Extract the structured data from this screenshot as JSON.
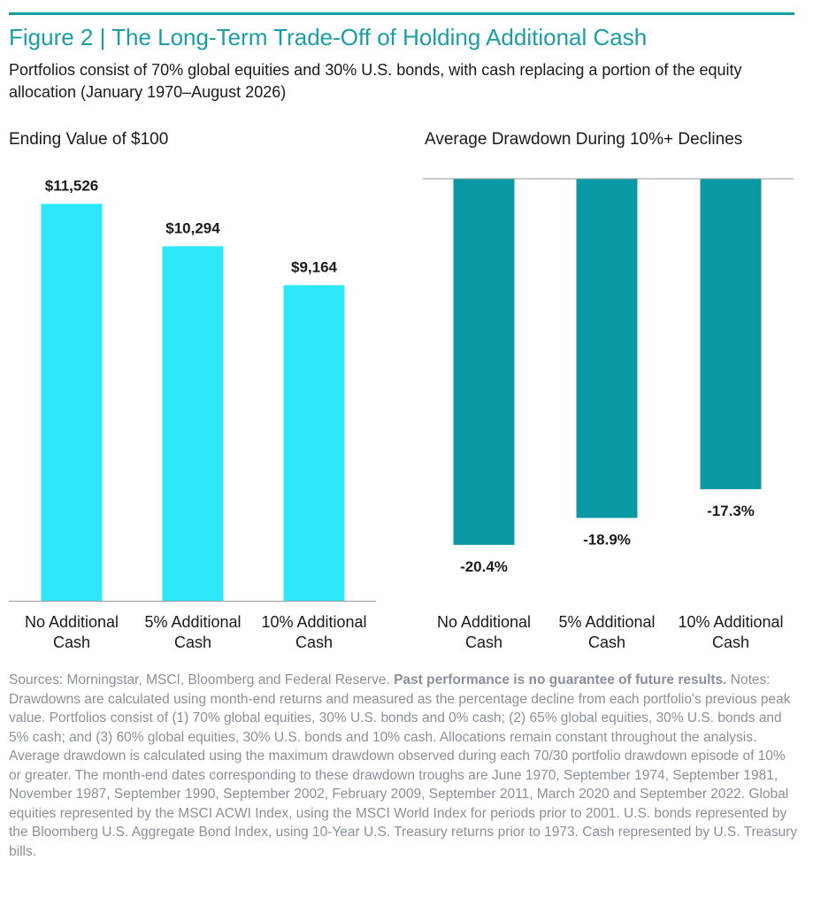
{
  "figure": {
    "title": "Figure 2 | The Long-Term Trade-Off of Holding Additional Cash",
    "subtitle": "Portfolios consist of 70% global equities and 30% U.S. bonds, with cash replacing a portion of the equity allocation (January 1970–August 2026)"
  },
  "colors": {
    "accent": "#1a9ea3",
    "left_bars": "#2de8f8",
    "right_bars": "#0b9aa5",
    "axis": "#999999"
  },
  "chart_data": [
    {
      "type": "bar",
      "title": "Ending Value of $100",
      "categories": [
        "No Additional Cash",
        "5% Additional Cash",
        "10% Additional Cash"
      ],
      "category_lines": [
        [
          "No Additional",
          "Cash"
        ],
        [
          "5% Additional",
          "Cash"
        ],
        [
          "10% Additional",
          "Cash"
        ]
      ],
      "values": [
        11526,
        10294,
        9164
      ],
      "data_labels": [
        "$11,526",
        "$10,294",
        "$9,164"
      ],
      "ylim": [
        0,
        13000
      ],
      "grid": false
    },
    {
      "type": "bar",
      "title": "Average Drawdown During 10%+ Declines",
      "categories": [
        "No Additional Cash",
        "5% Additional Cash",
        "10% Additional Cash"
      ],
      "category_lines": [
        [
          "No Additional",
          "Cash"
        ],
        [
          "5% Additional",
          "Cash"
        ],
        [
          "10% Additional",
          "Cash"
        ]
      ],
      "values": [
        -20.4,
        -18.9,
        -17.3
      ],
      "data_labels": [
        "-20.4%",
        "-18.9%",
        "-17.3%"
      ],
      "ylim": [
        -21,
        0
      ],
      "grid": false
    }
  ],
  "notes": {
    "sources": "Sources: Morningstar, MSCI, Bloomberg and Federal Reserve.",
    "disclaimer": "Past performance is no guarantee of future results.",
    "body": "Notes: Drawdowns are calculated using month-end returns and measured as the percentage decline from each portfolio's previous peak value. Portfolios consist of (1) 70% global equities, 30% U.S. bonds and 0% cash; (2) 65% global equities, 30% U.S. bonds and 5% cash; and (3) 60% global equities, 30% U.S. bonds and 10% cash. Allocations remain constant throughout the analysis. Average drawdown is calculated using the maximum drawdown observed during each 70/30 portfolio drawdown episode of 10% or greater. The month-end dates corresponding to these drawdown troughs are June 1970, September 1974, September 1981, November 1987, September 1990, September 2002, February 2009, September 2011, March 2020 and September 2022. Global equities represented by the MSCI ACWI Index, using the MSCI World Index for periods prior to 2001. U.S. bonds represented by the Bloomberg U.S. Aggregate Bond Index, using 10-Year U.S. Treasury returns prior to 1973. Cash represented by U.S. Treasury bills."
  }
}
